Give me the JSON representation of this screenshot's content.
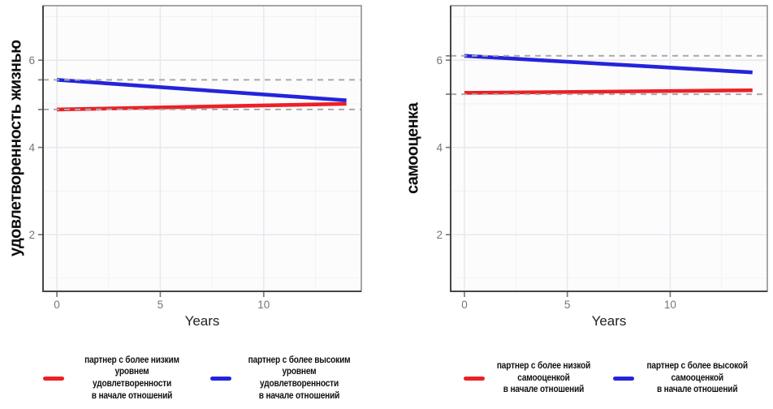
{
  "page": {
    "background": "#ffffff"
  },
  "colors": {
    "red": "#ec2027",
    "blue": "#2424dc",
    "ref_dash": "#a9a9a9",
    "panel_bg": "#fdfcfd",
    "grid_major": "#eae7ef",
    "grid_minor": "#f3f1f6",
    "panel_border": "#8f8f8f",
    "axis_line": "#454545",
    "tick_mark": "#7a7a7a",
    "tick_label": "#757575"
  },
  "chart_data": [
    {
      "type": "line",
      "title": "",
      "ylabel": "удовлетворенность жизнью",
      "xlabel": "Years",
      "xlim": [
        -0.67,
        14.72
      ],
      "ylim": [
        0.7,
        7.25
      ],
      "x_ticks": [
        0,
        5,
        10
      ],
      "y_ticks": [
        2,
        4,
        6
      ],
      "x_minor_gridlines": [
        2.5,
        7.5,
        12.5
      ],
      "y_minor_gridlines": [
        1,
        3,
        5,
        7
      ],
      "grid": true,
      "legend_position": "bottom",
      "series": [
        {
          "name": "партнер с более низким уровнем удовлетворенности в начале отношений",
          "color_key": "red",
          "x": [
            0,
            14
          ],
          "y": [
            4.87,
            5.0
          ]
        },
        {
          "name": "партнер с более высоким уровнем удовлетворенности в начале отношений",
          "color_key": "blue",
          "x": [
            0,
            14
          ],
          "y": [
            5.55,
            5.08
          ]
        }
      ],
      "ref_lines": [
        {
          "y": 4.87,
          "style": "dashed"
        },
        {
          "y": 5.55,
          "style": "dashed"
        }
      ],
      "legend": [
        {
          "label": "партнер с более низким\nуровнем удовлетворенности\nв начале отношений",
          "color_key": "red"
        },
        {
          "label": "партнер с более высоким\nуровнем удовлетворенности\nв начале отношений",
          "color_key": "blue"
        }
      ]
    },
    {
      "type": "line",
      "title": "",
      "ylabel": "самооценка",
      "xlabel": "Years",
      "xlim": [
        -0.67,
        14.72
      ],
      "ylim": [
        0.7,
        7.25
      ],
      "x_ticks": [
        0,
        5,
        10
      ],
      "y_ticks": [
        2,
        4,
        6
      ],
      "x_minor_gridlines": [
        2.5,
        7.5,
        12.5
      ],
      "y_minor_gridlines": [
        1,
        3,
        5,
        7
      ],
      "grid": true,
      "legend_position": "bottom",
      "series": [
        {
          "name": "партнер с более низкой самооценкой в начале отношений",
          "color_key": "red",
          "x": [
            0,
            14
          ],
          "y": [
            5.25,
            5.31
          ]
        },
        {
          "name": "партнер с более высокой самооценкой в начале отношений",
          "color_key": "blue",
          "x": [
            0,
            14
          ],
          "y": [
            6.1,
            5.72
          ]
        }
      ],
      "ref_lines": [
        {
          "y": 5.22,
          "style": "dashed"
        },
        {
          "y": 6.1,
          "style": "dashed"
        }
      ],
      "legend": [
        {
          "label": "партнер с более низкой\nсамооценкой\nв начале отношений",
          "color_key": "red"
        },
        {
          "label": "партнер с более высокой\nсамооценкой\nв начале отношений",
          "color_key": "blue"
        }
      ]
    }
  ]
}
